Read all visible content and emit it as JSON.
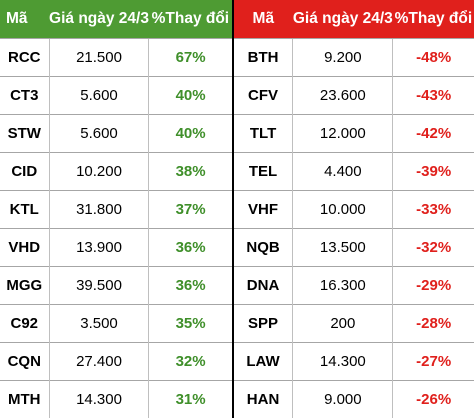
{
  "gainers": {
    "headers": {
      "code": "Mã",
      "price": "Giá ngày 24/3",
      "change": "%Thay đổi"
    },
    "rows": [
      {
        "code": "RCC",
        "price": "21.500",
        "change": "67%"
      },
      {
        "code": "CT3",
        "price": "5.600",
        "change": "40%"
      },
      {
        "code": "STW",
        "price": "5.600",
        "change": "40%"
      },
      {
        "code": "CID",
        "price": "10.200",
        "change": "38%"
      },
      {
        "code": "KTL",
        "price": "31.800",
        "change": "37%"
      },
      {
        "code": "VHD",
        "price": "13.900",
        "change": "36%"
      },
      {
        "code": "MGG",
        "price": "39.500",
        "change": "36%"
      },
      {
        "code": "C92",
        "price": "3.500",
        "change": "35%"
      },
      {
        "code": "CQN",
        "price": "27.400",
        "change": "32%"
      },
      {
        "code": "MTH",
        "price": "14.300",
        "change": "31%"
      }
    ]
  },
  "losers": {
    "headers": {
      "code": "Mã",
      "price": "Giá ngày 24/3",
      "change": "%Thay đổi"
    },
    "rows": [
      {
        "code": "BTH",
        "price": "9.200",
        "change": "-48%"
      },
      {
        "code": "CFV",
        "price": "23.600",
        "change": "-43%"
      },
      {
        "code": "TLT",
        "price": "12.000",
        "change": "-42%"
      },
      {
        "code": "TEL",
        "price": "4.400",
        "change": "-39%"
      },
      {
        "code": "VHF",
        "price": "10.000",
        "change": "-33%"
      },
      {
        "code": "NQB",
        "price": "13.500",
        "change": "-32%"
      },
      {
        "code": "DNA",
        "price": "16.300",
        "change": "-29%"
      },
      {
        "code": "SPP",
        "price": "200",
        "change": "-28%"
      },
      {
        "code": "LAW",
        "price": "14.300",
        "change": "-27%"
      },
      {
        "code": "HAN",
        "price": "9.000",
        "change": "-26%"
      }
    ]
  },
  "colors": {
    "gain_header": "#4e9b33",
    "loss_header": "#e0201c",
    "gain_text": "#3f8f2a",
    "loss_text": "#e0201c"
  }
}
